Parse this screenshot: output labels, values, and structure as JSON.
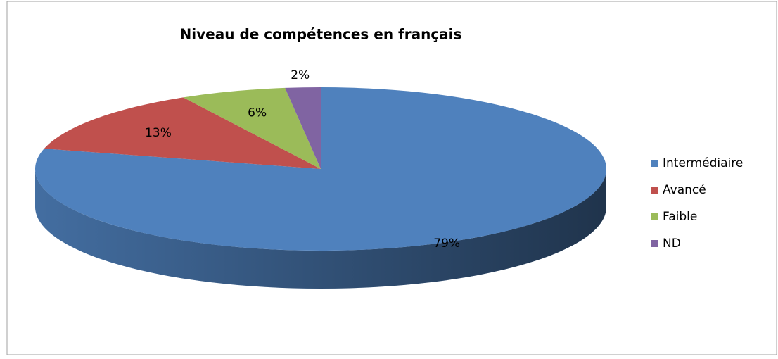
{
  "chart_data": {
    "type": "pie",
    "title": "Niveau de compétences en français",
    "categories": [
      "Intermédiaire",
      "Avancé",
      "Faible",
      "ND"
    ],
    "values": [
      79,
      13,
      6,
      2
    ],
    "value_labels": [
      "79%",
      "13%",
      "6%",
      "2%"
    ],
    "colors": [
      "#4f81bd",
      "#c0504d",
      "#9bbb59",
      "#8064a2"
    ],
    "legend": "right"
  }
}
